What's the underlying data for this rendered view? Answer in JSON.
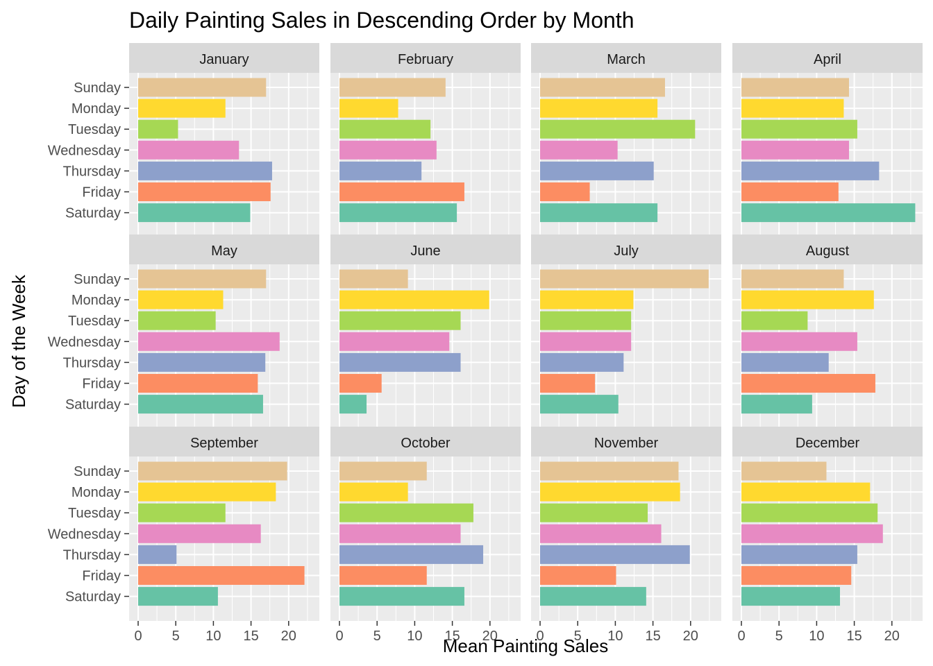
{
  "chart_data": {
    "type": "bar",
    "orientation": "horizontal",
    "title": "Daily Painting Sales in Descending Order by Month",
    "xlabel": "Mean Painting Sales",
    "ylabel": "Day of the Week",
    "xlim": [
      0,
      24
    ],
    "x_ticks": [
      "0",
      "5",
      "10",
      "15",
      "20"
    ],
    "categories": [
      "Sunday",
      "Monday",
      "Tuesday",
      "Wednesday",
      "Thursday",
      "Friday",
      "Saturday"
    ],
    "category_colors": [
      "#E5C494",
      "#FFD92F",
      "#A6D854",
      "#E78AC3",
      "#8DA0CB",
      "#FC8D62",
      "#66C2A5"
    ],
    "grid": true,
    "legend": "none",
    "facets": [
      {
        "month": "January",
        "values": [
          17.0,
          11.6,
          5.3,
          13.4,
          17.8,
          17.6,
          14.9
        ]
      },
      {
        "month": "February",
        "values": [
          14.1,
          7.8,
          12.1,
          12.9,
          10.9,
          16.6,
          15.6
        ]
      },
      {
        "month": "March",
        "values": [
          16.6,
          15.6,
          20.6,
          10.3,
          15.1,
          6.6,
          15.6
        ]
      },
      {
        "month": "April",
        "values": [
          14.3,
          13.6,
          15.4,
          14.3,
          18.3,
          12.9,
          23.1
        ]
      },
      {
        "month": "May",
        "values": [
          17.0,
          11.3,
          10.3,
          18.8,
          16.9,
          15.9,
          16.6
        ]
      },
      {
        "month": "June",
        "values": [
          9.1,
          19.9,
          16.1,
          14.6,
          16.1,
          5.6,
          3.6
        ]
      },
      {
        "month": "July",
        "values": [
          22.4,
          12.4,
          12.1,
          12.1,
          11.1,
          7.3,
          10.4
        ]
      },
      {
        "month": "August",
        "values": [
          13.6,
          17.6,
          8.8,
          15.4,
          11.6,
          17.8,
          9.4
        ]
      },
      {
        "month": "September",
        "values": [
          19.8,
          18.3,
          11.6,
          16.3,
          5.1,
          22.1,
          10.6
        ]
      },
      {
        "month": "October",
        "values": [
          11.6,
          9.1,
          17.8,
          16.1,
          19.1,
          11.6,
          16.6
        ]
      },
      {
        "month": "November",
        "values": [
          18.4,
          18.6,
          14.3,
          16.1,
          19.9,
          10.1,
          14.1
        ]
      },
      {
        "month": "December",
        "values": [
          11.3,
          17.1,
          18.1,
          18.8,
          15.4,
          14.6,
          13.1
        ]
      }
    ]
  }
}
